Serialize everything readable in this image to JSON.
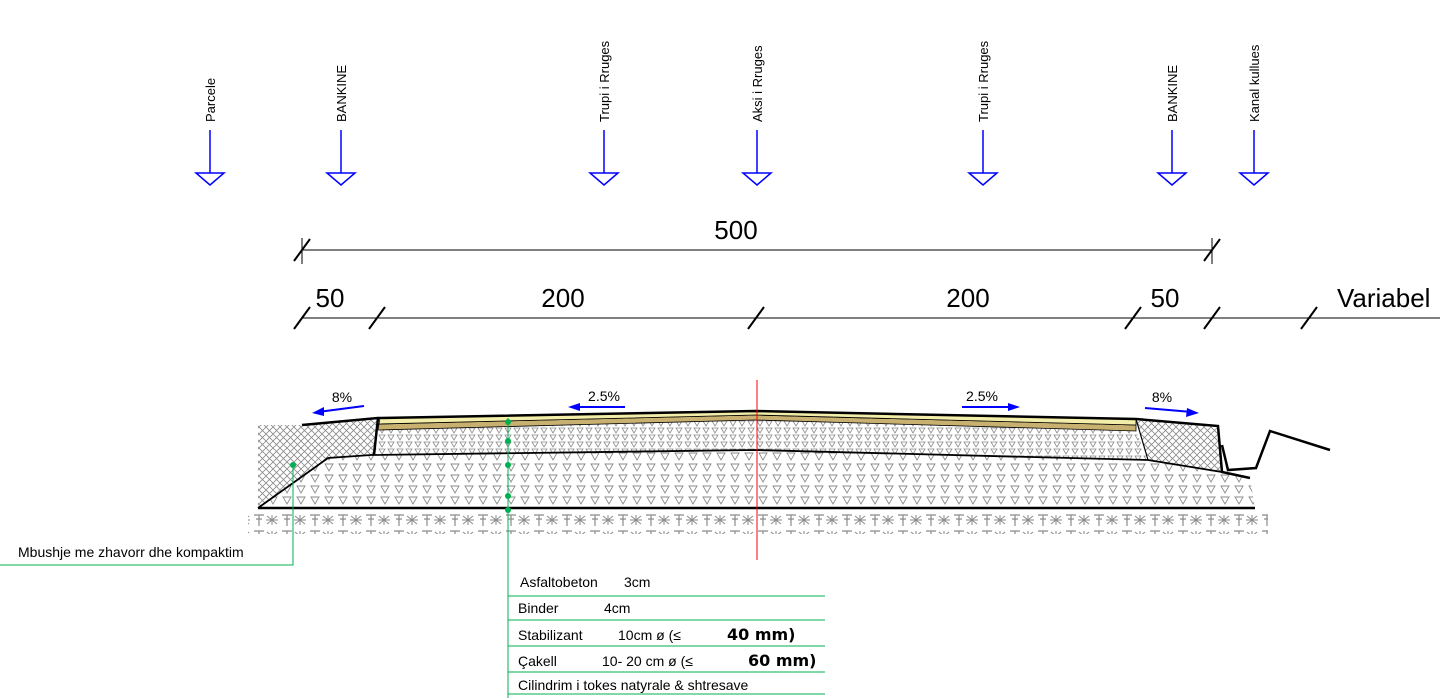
{
  "markers": [
    {
      "label": "Parcele",
      "color": "#0000ff"
    },
    {
      "label": "BANKINE",
      "color": "#0000ff"
    },
    {
      "label": "Trupi i Rruges",
      "color": "#0000ff"
    },
    {
      "label": "Aksi i Rruges",
      "color": "#0000ff"
    },
    {
      "label": "Trupi i Rruges",
      "color": "#0000ff"
    },
    {
      "label": "BANKINE",
      "color": "#0000ff"
    },
    {
      "label": "Kanal kullues",
      "color": "#0000ff"
    }
  ],
  "dimensions": {
    "total": "500",
    "segments": [
      "50",
      "200",
      "200",
      "50",
      "Variabel"
    ]
  },
  "slopes": [
    "8%",
    "2.5%",
    "2.5%",
    "8%"
  ],
  "callout": {
    "label": "Mbushje me zhavorr dhe kompaktim",
    "color": "#00b050"
  },
  "layers": [
    {
      "name": "Asfaltobeton",
      "spec": "3cm",
      "extra": ""
    },
    {
      "name": "Binder",
      "spec": "4cm",
      "extra": ""
    },
    {
      "name": "Stabilizant",
      "spec": "10cm ø (≤",
      "extra": "40 mm)"
    },
    {
      "name": "Çakell",
      "spec": "10- 20 cm ø (≤",
      "extra": "60 mm)"
    },
    {
      "name": "Cilindrim i tokes natyrale & shtresave",
      "spec": "",
      "extra": ""
    }
  ],
  "colors": {
    "marker": "#0000ff",
    "axis": "#ff0000",
    "leader": "#00b050",
    "asphalt": "#f2eeaa",
    "binder": "#c8b070"
  }
}
